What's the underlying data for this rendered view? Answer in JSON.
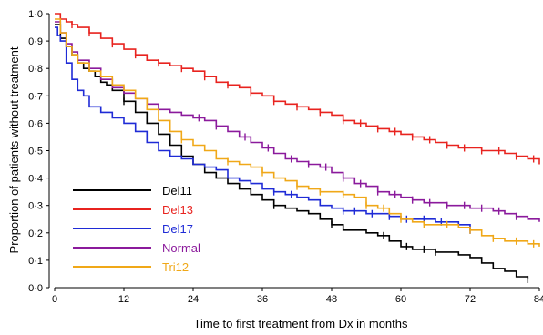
{
  "chart_data": {
    "type": "line",
    "subtype": "kaplan-meier step",
    "title": "",
    "xlabel": "Time to first treatment from Dx in months",
    "ylabel": "Proportion of patients without treatment",
    "xlim": [
      0,
      84
    ],
    "ylim": [
      0,
      1
    ],
    "x_ticks": [
      "0",
      "12",
      "24",
      "36",
      "48",
      "60",
      "72",
      "84"
    ],
    "y_ticks": [
      "0·0",
      "0·1",
      "0·2",
      "0·3",
      "0·4",
      "0·5",
      "0·6",
      "0·7",
      "0·8",
      "0·9",
      "1·0"
    ],
    "grid": false,
    "legend": "bottom-left",
    "series": [
      {
        "name": "Del11",
        "color": "#000000",
        "x": [
          0,
          1,
          2,
          3,
          4,
          5,
          6,
          7,
          8,
          9,
          10,
          12,
          14,
          16,
          18,
          20,
          22,
          24,
          26,
          28,
          30,
          32,
          34,
          36,
          38,
          40,
          42,
          44,
          46,
          48,
          50,
          52,
          54,
          56,
          58,
          60,
          62,
          64,
          66,
          68,
          70,
          72,
          74,
          76,
          78,
          80,
          82
        ],
        "y": [
          0.96,
          0.91,
          0.88,
          0.85,
          0.82,
          0.8,
          0.79,
          0.77,
          0.75,
          0.74,
          0.72,
          0.68,
          0.64,
          0.6,
          0.56,
          0.52,
          0.48,
          0.45,
          0.42,
          0.4,
          0.38,
          0.36,
          0.34,
          0.32,
          0.3,
          0.29,
          0.28,
          0.27,
          0.25,
          0.23,
          0.21,
          0.21,
          0.2,
          0.19,
          0.17,
          0.15,
          0.14,
          0.14,
          0.13,
          0.13,
          0.12,
          0.11,
          0.09,
          0.07,
          0.06,
          0.04,
          0.03
        ],
        "censor_x": [
          12,
          38,
          48,
          57,
          61,
          64,
          66,
          82
        ]
      },
      {
        "name": "Del13",
        "color": "#e8231f",
        "x": [
          0,
          1,
          2,
          3,
          4,
          6,
          8,
          10,
          12,
          14,
          16,
          18,
          20,
          22,
          24,
          26,
          28,
          30,
          32,
          34,
          36,
          38,
          40,
          42,
          44,
          46,
          48,
          50,
          52,
          54,
          56,
          58,
          60,
          62,
          64,
          66,
          68,
          70,
          72,
          74,
          76,
          78,
          80,
          82,
          84
        ],
        "y": [
          1.0,
          0.98,
          0.97,
          0.96,
          0.95,
          0.93,
          0.91,
          0.89,
          0.87,
          0.85,
          0.83,
          0.82,
          0.81,
          0.8,
          0.79,
          0.77,
          0.75,
          0.74,
          0.73,
          0.71,
          0.7,
          0.68,
          0.67,
          0.66,
          0.65,
          0.64,
          0.63,
          0.61,
          0.6,
          0.59,
          0.58,
          0.57,
          0.56,
          0.55,
          0.54,
          0.53,
          0.52,
          0.51,
          0.51,
          0.5,
          0.5,
          0.49,
          0.48,
          0.47,
          0.45
        ],
        "censor_x": [
          3,
          6,
          10,
          14,
          18,
          22,
          26,
          30,
          34,
          38,
          42,
          46,
          50,
          53,
          56,
          59,
          62,
          65,
          68,
          71,
          74,
          77,
          80,
          83
        ]
      },
      {
        "name": "Del17",
        "color": "#1f2bd6",
        "x": [
          0,
          0.5,
          1,
          2,
          3,
          4,
          5,
          6,
          8,
          10,
          12,
          14,
          16,
          18,
          20,
          22,
          24,
          26,
          28,
          30,
          32,
          34,
          36,
          38,
          40,
          42,
          44,
          46,
          48,
          50,
          52,
          54,
          56,
          58,
          60,
          62,
          64,
          66,
          68,
          70,
          72
        ],
        "y": [
          0.95,
          0.92,
          0.9,
          0.82,
          0.76,
          0.72,
          0.7,
          0.66,
          0.64,
          0.62,
          0.6,
          0.57,
          0.53,
          0.5,
          0.48,
          0.47,
          0.45,
          0.44,
          0.43,
          0.4,
          0.39,
          0.38,
          0.36,
          0.35,
          0.34,
          0.33,
          0.32,
          0.3,
          0.29,
          0.28,
          0.28,
          0.27,
          0.27,
          0.26,
          0.25,
          0.25,
          0.25,
          0.24,
          0.24,
          0.23,
          0.21
        ],
        "censor_x": [
          38,
          41,
          50,
          52,
          55,
          58,
          61,
          64,
          67,
          72
        ]
      },
      {
        "name": "Normal",
        "color": "#8b1a9c",
        "x": [
          0,
          1,
          2,
          3,
          4,
          6,
          8,
          10,
          12,
          14,
          16,
          18,
          20,
          22,
          24,
          26,
          28,
          30,
          32,
          34,
          36,
          38,
          40,
          42,
          44,
          46,
          48,
          50,
          52,
          54,
          56,
          58,
          60,
          62,
          64,
          66,
          68,
          70,
          72,
          74,
          76,
          78,
          80,
          82,
          84
        ],
        "y": [
          0.97,
          0.93,
          0.89,
          0.86,
          0.83,
          0.8,
          0.76,
          0.73,
          0.71,
          0.69,
          0.67,
          0.65,
          0.64,
          0.63,
          0.62,
          0.61,
          0.59,
          0.57,
          0.55,
          0.53,
          0.51,
          0.49,
          0.47,
          0.46,
          0.45,
          0.44,
          0.42,
          0.4,
          0.38,
          0.37,
          0.35,
          0.34,
          0.33,
          0.32,
          0.31,
          0.31,
          0.3,
          0.3,
          0.29,
          0.29,
          0.28,
          0.27,
          0.26,
          0.25,
          0.24
        ],
        "censor_x": [
          25,
          28,
          33,
          37,
          41,
          44,
          47,
          50,
          53,
          56,
          59,
          62,
          65,
          68,
          71,
          74,
          77,
          80
        ]
      },
      {
        "name": "Tri12",
        "color": "#f0a818",
        "x": [
          0,
          1,
          2,
          3,
          4,
          6,
          8,
          10,
          12,
          14,
          16,
          18,
          20,
          22,
          24,
          26,
          28,
          30,
          32,
          34,
          36,
          38,
          40,
          42,
          44,
          46,
          48,
          50,
          52,
          54,
          56,
          58,
          60,
          62,
          64,
          66,
          68,
          70,
          72,
          74,
          76,
          78,
          80,
          82,
          84
        ],
        "y": [
          0.98,
          0.93,
          0.88,
          0.85,
          0.82,
          0.79,
          0.77,
          0.74,
          0.72,
          0.69,
          0.65,
          0.61,
          0.57,
          0.54,
          0.52,
          0.5,
          0.47,
          0.46,
          0.45,
          0.44,
          0.42,
          0.4,
          0.39,
          0.37,
          0.36,
          0.35,
          0.35,
          0.34,
          0.33,
          0.3,
          0.29,
          0.27,
          0.25,
          0.24,
          0.23,
          0.23,
          0.23,
          0.22,
          0.21,
          0.19,
          0.18,
          0.17,
          0.17,
          0.16,
          0.15
        ],
        "censor_x": [
          22,
          30,
          36,
          42,
          46,
          50,
          54,
          57,
          60,
          64,
          68,
          72,
          76,
          80,
          83
        ]
      }
    ]
  }
}
